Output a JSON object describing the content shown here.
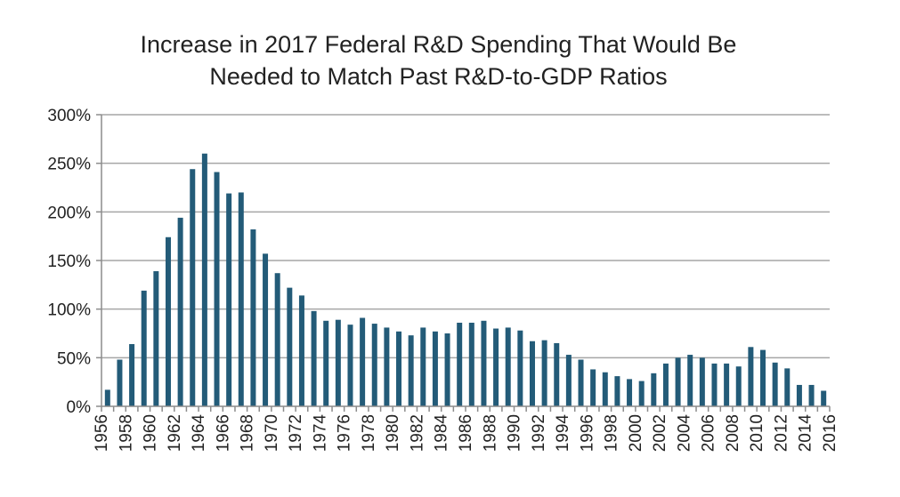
{
  "chart_data": {
    "type": "bar",
    "title_lines": [
      "Increase in 2017 Federal R&D Spending That Would Be",
      "Needed to Match Past R&D-to-GDP Ratios"
    ],
    "xlabel": "",
    "ylabel": "",
    "ylim": [
      0,
      300
    ],
    "y_ticks": [
      "0%",
      "50%",
      "100%",
      "150%",
      "200%",
      "250%",
      "300%"
    ],
    "y_tick_values": [
      0,
      50,
      100,
      150,
      200,
      250,
      300
    ],
    "grid": true,
    "legend": "none",
    "bar_color": "#235b78",
    "categories": [
      1956,
      1957,
      1958,
      1959,
      1960,
      1961,
      1962,
      1963,
      1964,
      1965,
      1966,
      1967,
      1968,
      1969,
      1970,
      1971,
      1972,
      1973,
      1974,
      1975,
      1976,
      1977,
      1978,
      1979,
      1980,
      1981,
      1982,
      1983,
      1984,
      1985,
      1986,
      1987,
      1988,
      1989,
      1990,
      1991,
      1992,
      1993,
      1994,
      1995,
      1996,
      1997,
      1998,
      1999,
      2000,
      2001,
      2002,
      2003,
      2004,
      2005,
      2006,
      2007,
      2008,
      2009,
      2010,
      2011,
      2012,
      2013,
      2014,
      2015,
      2016
    ],
    "values": [
      17,
      48,
      64,
      119,
      139,
      174,
      194,
      244,
      260,
      241,
      219,
      220,
      182,
      157,
      137,
      122,
      114,
      98,
      88,
      89,
      84,
      91,
      85,
      81,
      77,
      73,
      81,
      77,
      75,
      86,
      86,
      88,
      80,
      81,
      78,
      67,
      68,
      65,
      53,
      48,
      38,
      35,
      31,
      28,
      26,
      34,
      44,
      50,
      53,
      50,
      44,
      44,
      41,
      61,
      58,
      45,
      39,
      22,
      22,
      16,
      null
    ],
    "x_tick_labels": [
      "1956",
      "1958",
      "1960",
      "1962",
      "1964",
      "1966",
      "1968",
      "1970",
      "1972",
      "1974",
      "1976",
      "1978",
      "1980",
      "1982",
      "1984",
      "1986",
      "1988",
      "1990",
      "1992",
      "1994",
      "1996",
      "1998",
      "2000",
      "2002",
      "2004",
      "2006",
      "2008",
      "2010",
      "2012",
      "2014",
      "2016"
    ]
  }
}
